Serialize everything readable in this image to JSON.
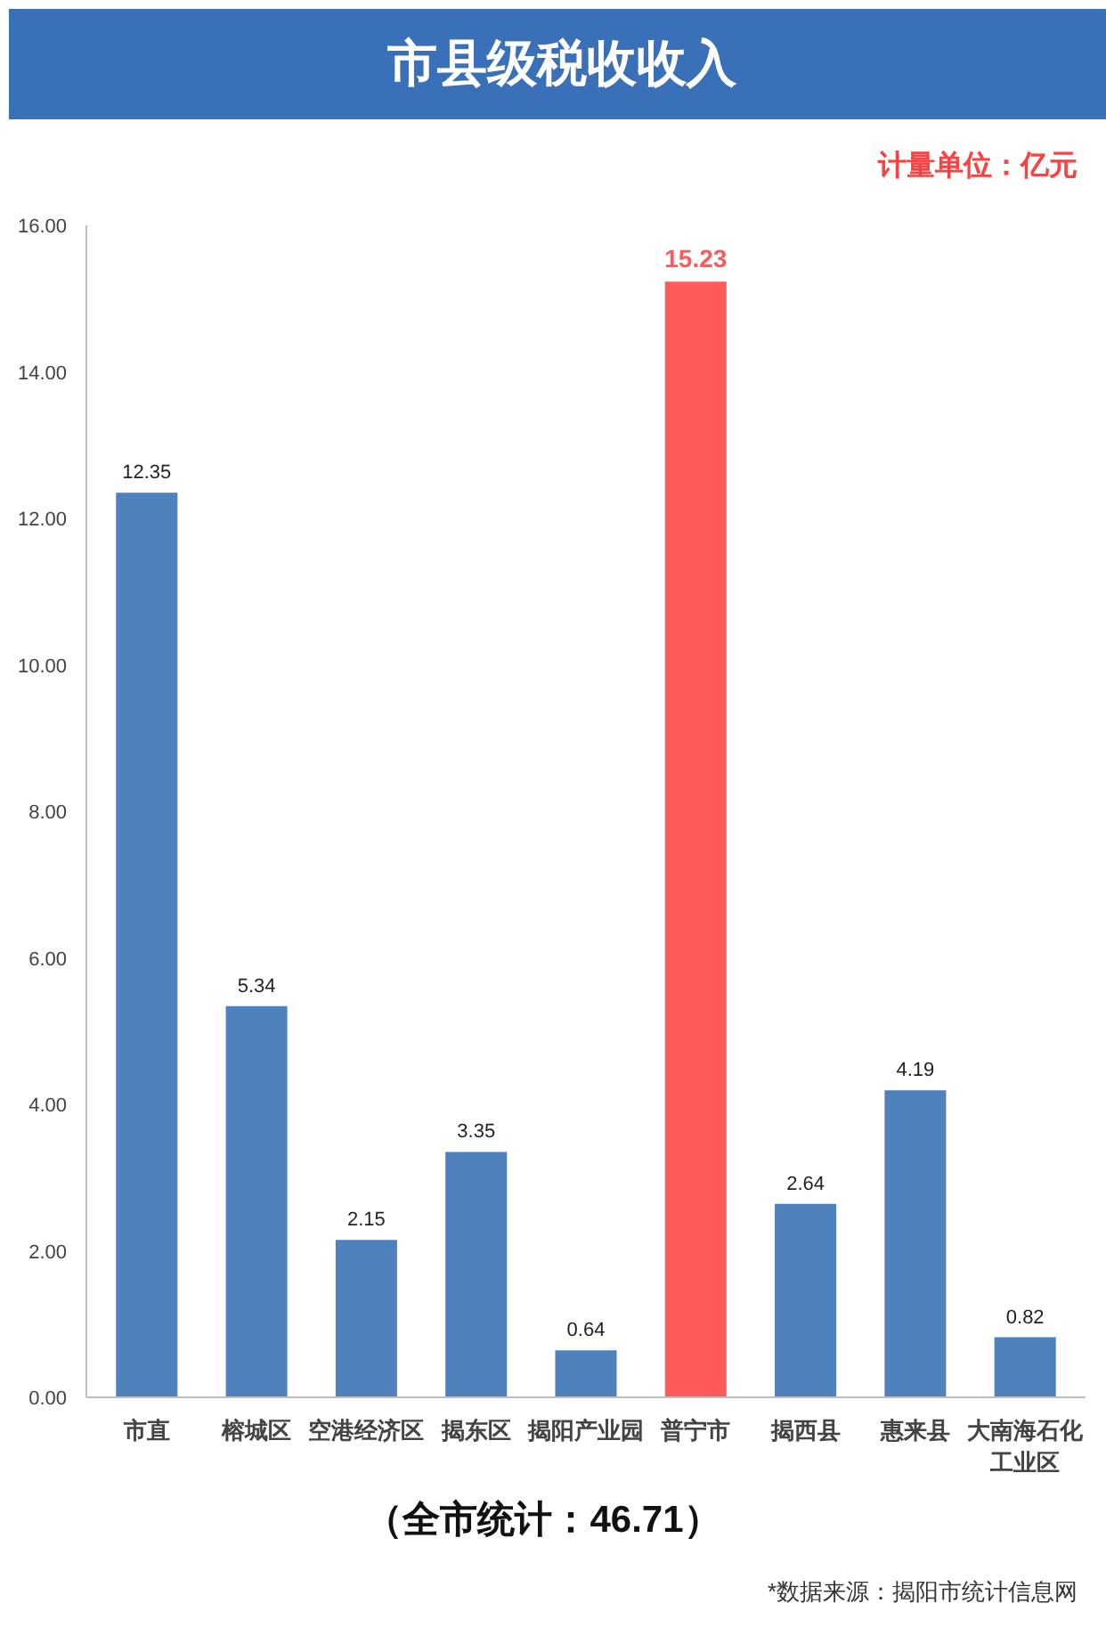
{
  "chart_data": {
    "type": "bar",
    "title": "市县级税收收入",
    "categories": [
      "市直",
      "榕城区",
      "空港经济区",
      "揭东区",
      "揭阳产业园",
      "普宁市",
      "揭西县",
      "惠来县",
      "大南海石化工业区"
    ],
    "values": [
      12.35,
      5.34,
      2.15,
      3.35,
      0.64,
      15.23,
      2.64,
      4.19,
      0.82
    ],
    "colors": [
      "#4f81bd",
      "#4f81bd",
      "#4f81bd",
      "#4f81bd",
      "#4f81bd",
      "#ff5a5a",
      "#4f81bd",
      "#4f81bd",
      "#4f81bd"
    ],
    "ylim": [
      0,
      16
    ],
    "yticks": [
      {
        "value": 0,
        "label": "0.00"
      },
      {
        "value": 2,
        "label": "2.00"
      },
      {
        "value": 4,
        "label": "4.00"
      },
      {
        "value": 6,
        "label": "6.00"
      },
      {
        "value": 8,
        "label": "8.00"
      },
      {
        "value": 10,
        "label": "10.00"
      },
      {
        "value": 12,
        "label": "12.00"
      },
      {
        "value": 14,
        "label": "14.00"
      },
      {
        "value": 16,
        "label": "16.00"
      }
    ],
    "data_labels": true,
    "grid": false,
    "annotations": [
      "计量单位：亿元",
      "（全市统计：46.71）",
      "*数据来源：揭阳市统计信息网"
    ]
  }
}
